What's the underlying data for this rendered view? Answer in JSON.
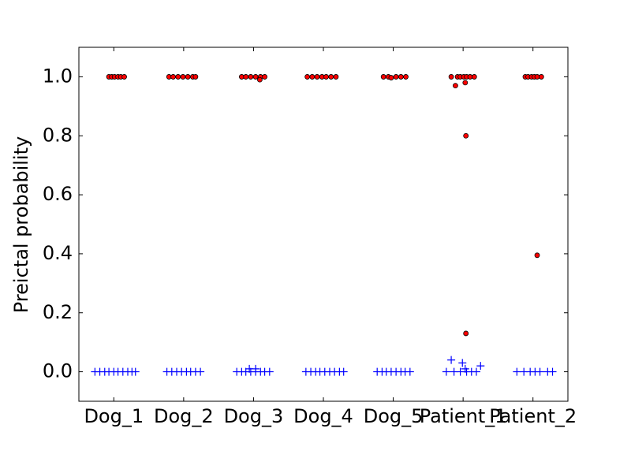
{
  "chart_data": {
    "type": "scatter",
    "ylabel": "Preictal probability",
    "xlim": [
      -0.5,
      6.5
    ],
    "xticks": [
      {
        "value": 0,
        "label": "Dog_1"
      },
      {
        "value": 1,
        "label": "Dog_2"
      },
      {
        "value": 2,
        "label": "Dog_3"
      },
      {
        "value": 3,
        "label": "Dog_4"
      },
      {
        "value": 4,
        "label": "Dog_5"
      },
      {
        "value": 5,
        "label": "Patient_1"
      },
      {
        "value": 6,
        "label": "Patient_2"
      }
    ],
    "ylim": [
      -0.1,
      1.1
    ],
    "yticks": [
      {
        "value": 0,
        "label": "0.0"
      },
      0.2,
      0.4,
      0.6,
      0.8,
      {
        "value": 1,
        "label": "1.0"
      }
    ],
    "series": [
      {
        "color": "#ff0000",
        "marker": "o",
        "x": [
          -0.07,
          -0.03,
          0.01,
          0.06,
          0.1,
          0.15,
          0.79,
          0.85,
          0.92,
          0.99,
          1.06,
          1.13,
          1.17,
          1.83,
          1.89,
          1.96,
          2.03,
          2.1,
          2.16,
          2.09,
          2.77,
          2.84,
          2.91,
          2.98,
          3.04,
          3.11,
          3.18,
          3.86,
          3.93,
          3.97,
          4.04,
          4.11,
          4.18,
          4.83,
          4.89,
          4.92,
          4.96,
          5.01,
          5.05,
          5.1,
          5.16,
          5.03,
          5.04,
          5.04,
          5.89,
          5.93,
          5.98,
          6.02,
          6.06,
          6.12,
          6.06
        ],
        "values": [
          1,
          1,
          1,
          1,
          1,
          1,
          1,
          1,
          1,
          1,
          1,
          1,
          1,
          1,
          1,
          1,
          1,
          1,
          1,
          0.99,
          1,
          1,
          1,
          1,
          1,
          1,
          1,
          1,
          1,
          0.997,
          1,
          1,
          1,
          1,
          0.97,
          1,
          1,
          1,
          1,
          1,
          1,
          0.98,
          0.8,
          0.13,
          1,
          1,
          1,
          1,
          1,
          1,
          0.395
        ]
      },
      {
        "color": "#0000ff",
        "marker": "+",
        "x": [
          -0.27,
          -0.2,
          -0.13,
          -0.07,
          0.0,
          0.06,
          0.13,
          0.2,
          0.26,
          0.31,
          0.76,
          0.83,
          0.9,
          0.97,
          1.04,
          1.1,
          1.17,
          1.24,
          1.76,
          1.83,
          1.89,
          1.96,
          2.03,
          2.1,
          2.16,
          2.23,
          1.94,
          2.03,
          2.75,
          2.82,
          2.89,
          2.95,
          3.02,
          3.09,
          3.16,
          3.23,
          3.29,
          3.77,
          3.84,
          3.9,
          3.97,
          4.04,
          4.11,
          4.17,
          4.24,
          4.76,
          4.87,
          4.96,
          5.05,
          5.12,
          5.19,
          4.83,
          4.99,
          5.25,
          5.03,
          5.77,
          5.87,
          5.96,
          6.03,
          6.1,
          6.21,
          6.28
        ],
        "values": [
          0,
          0,
          0,
          0,
          0,
          0,
          0,
          0,
          0,
          0,
          0,
          0,
          0,
          0,
          0,
          0,
          0,
          0,
          0,
          0,
          0,
          0,
          0,
          0,
          0,
          0,
          0.01,
          0.01,
          0,
          0,
          0,
          0,
          0,
          0,
          0,
          0,
          0,
          0,
          0,
          0,
          0,
          0,
          0,
          0,
          0,
          0,
          0,
          0,
          0,
          0,
          0,
          0.04,
          0.03,
          0.02,
          0.01,
          0,
          0,
          0,
          0,
          0,
          0,
          0
        ]
      }
    ]
  }
}
